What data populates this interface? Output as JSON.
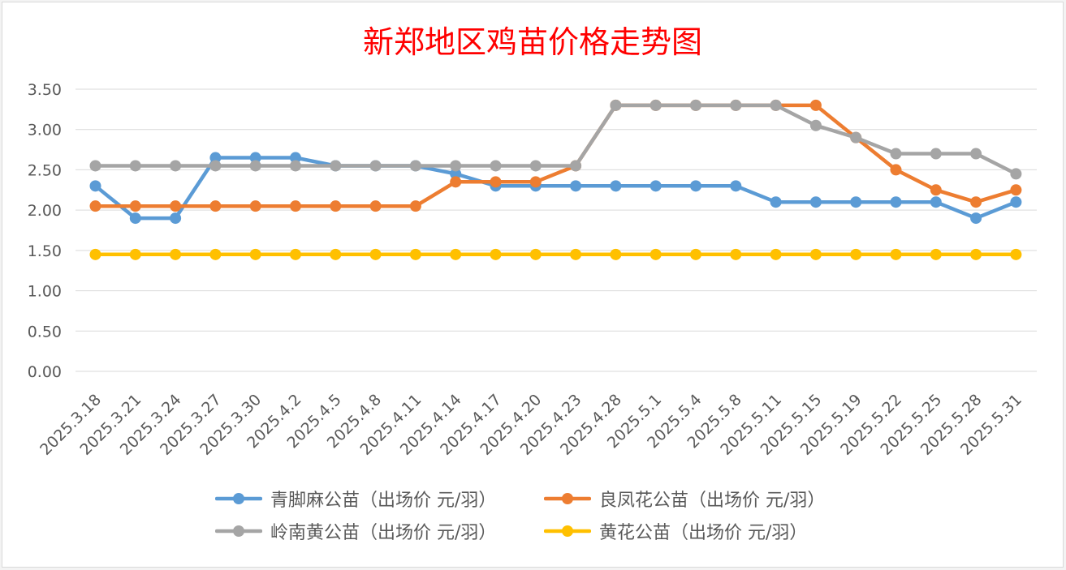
{
  "chart_data": {
    "type": "line",
    "title": "新郑地区鸡苗价格走势图",
    "categories": [
      "2025.3.18",
      "2025.3.21",
      "2025.3.24",
      "2025.3.27",
      "2025.3.30",
      "2025.4.2",
      "2025.4.5",
      "2025.4.8",
      "2025.4.11",
      "2025.4.14",
      "2025.4.17",
      "2025.4.20",
      "2025.4.23",
      "2025.4.28",
      "2025.5.1",
      "2025.5.4",
      "2025.5.8",
      "2025.5.11",
      "2025.5.15",
      "2025.5.19",
      "2025.5.22",
      "2025.5.25",
      "2025.5.28",
      "2025.5.31"
    ],
    "yticks": [
      "0.00",
      "0.50",
      "1.00",
      "1.50",
      "2.00",
      "2.50",
      "3.00",
      "3.50"
    ],
    "ylim": [
      0,
      3.5
    ],
    "grid": true,
    "legend_position": "bottom",
    "series": [
      {
        "name": "青脚麻公苗（出场价 元/羽）",
        "color": "#5b9bd5",
        "values": [
          2.3,
          1.9,
          1.9,
          2.65,
          2.65,
          2.65,
          2.55,
          2.55,
          2.55,
          2.45,
          2.3,
          2.3,
          2.3,
          2.3,
          2.3,
          2.3,
          2.3,
          2.1,
          2.1,
          2.1,
          2.1,
          2.1,
          1.9,
          2.1
        ]
      },
      {
        "name": "良凤花公苗（出场价 元/羽）",
        "color": "#ed7d31",
        "values": [
          2.05,
          2.05,
          2.05,
          2.05,
          2.05,
          2.05,
          2.05,
          2.05,
          2.05,
          2.35,
          2.35,
          2.35,
          2.55,
          3.3,
          3.3,
          3.3,
          3.3,
          3.3,
          3.3,
          2.9,
          2.5,
          2.25,
          2.1,
          2.25
        ]
      },
      {
        "name": "岭南黄公苗（出场价 元/羽）",
        "color": "#a5a5a5",
        "values": [
          2.55,
          2.55,
          2.55,
          2.55,
          2.55,
          2.55,
          2.55,
          2.55,
          2.55,
          2.55,
          2.55,
          2.55,
          2.55,
          3.3,
          3.3,
          3.3,
          3.3,
          3.3,
          3.05,
          2.9,
          2.7,
          2.7,
          2.7,
          2.45
        ]
      },
      {
        "name": "黄花公苗（出场价 元/羽）",
        "color": "#ffc000",
        "values": [
          1.45,
          1.45,
          1.45,
          1.45,
          1.45,
          1.45,
          1.45,
          1.45,
          1.45,
          1.45,
          1.45,
          1.45,
          1.45,
          1.45,
          1.45,
          1.45,
          1.45,
          1.45,
          1.45,
          1.45,
          1.45,
          1.45,
          1.45,
          1.45
        ]
      }
    ]
  }
}
